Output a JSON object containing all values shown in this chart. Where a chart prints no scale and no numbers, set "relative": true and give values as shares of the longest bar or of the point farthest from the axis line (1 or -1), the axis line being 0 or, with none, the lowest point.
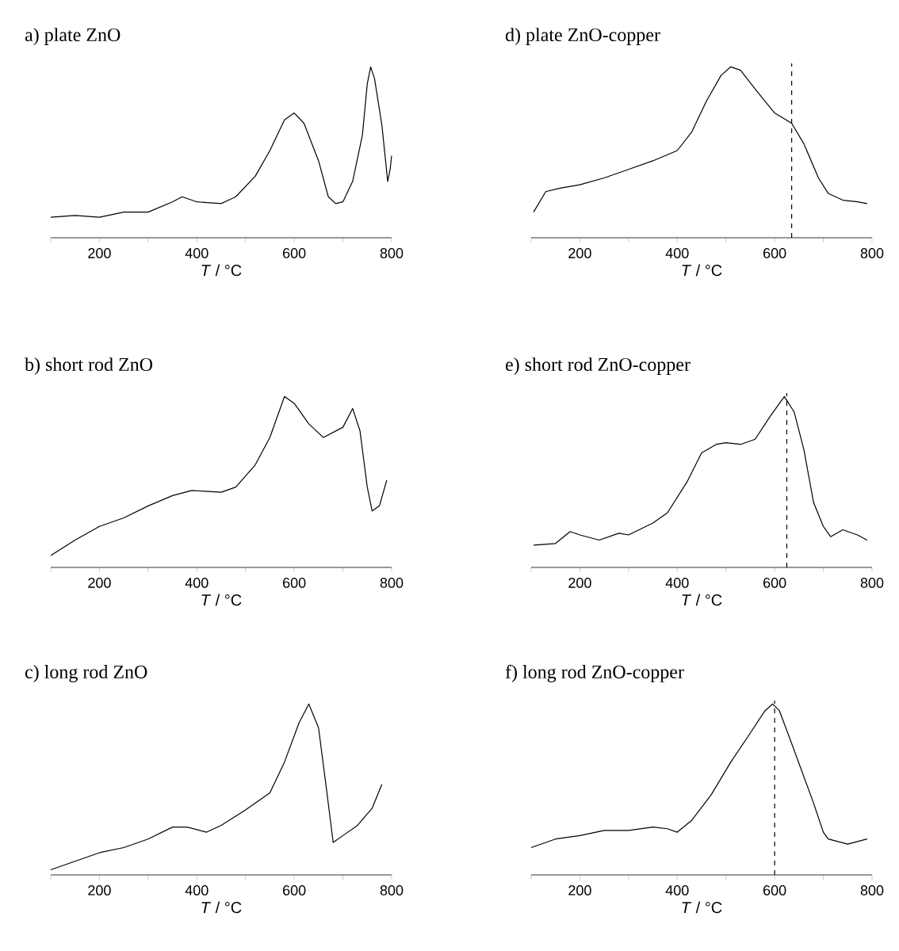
{
  "chart_data": [
    {
      "type": "line",
      "title": "a) plate ZnO",
      "xlabel": "*T* / °C",
      "relative": true,
      "tick_labels": "x",
      "color": "#000000",
      "xlim": [
        100,
        800
      ],
      "xticks": [
        {
          "value": 100,
          "label": null
        },
        200,
        {
          "value": 300,
          "label": null
        },
        400,
        {
          "value": 500,
          "label": null
        },
        600,
        {
          "value": 700,
          "label": null
        },
        800
      ],
      "x": [
        100,
        150,
        200,
        250,
        300,
        350,
        370,
        400,
        450,
        480,
        520,
        550,
        580,
        600,
        620,
        650,
        670,
        685,
        700,
        720,
        740,
        750,
        757,
        765,
        780,
        792,
        797,
        800
      ],
      "values": [
        0.12,
        0.13,
        0.12,
        0.15,
        0.15,
        0.21,
        0.24,
        0.21,
        0.2,
        0.24,
        0.36,
        0.51,
        0.69,
        0.73,
        0.67,
        0.45,
        0.24,
        0.2,
        0.21,
        0.33,
        0.6,
        0.9,
        1.0,
        0.93,
        0.66,
        0.33,
        0.4,
        0.48
      ]
    },
    {
      "type": "line",
      "title": "b) short rod ZnO",
      "xlabel": "*T* / °C",
      "relative": true,
      "tick_labels": "x",
      "color": "#000000",
      "xlim": [
        100,
        800
      ],
      "xticks": [
        {
          "value": 100,
          "label": null
        },
        200,
        {
          "value": 300,
          "label": null
        },
        400,
        {
          "value": 500,
          "label": null
        },
        600,
        {
          "value": 700,
          "label": null
        },
        800
      ],
      "x": [
        100,
        150,
        200,
        250,
        300,
        350,
        390,
        450,
        480,
        520,
        550,
        580,
        600,
        630,
        660,
        700,
        720,
        735,
        750,
        760,
        775,
        790
      ],
      "values": [
        0.07,
        0.16,
        0.24,
        0.29,
        0.36,
        0.42,
        0.45,
        0.44,
        0.47,
        0.6,
        0.76,
        1.0,
        0.96,
        0.84,
        0.76,
        0.82,
        0.93,
        0.8,
        0.47,
        0.33,
        0.36,
        0.51
      ]
    },
    {
      "type": "line",
      "title": "c) long rod ZnO",
      "xlabel": "*T* / °C",
      "relative": true,
      "tick_labels": "x",
      "color": "#000000",
      "xlim": [
        100,
        800
      ],
      "xticks": [
        {
          "value": 100,
          "label": null
        },
        200,
        {
          "value": 300,
          "label": null
        },
        400,
        {
          "value": 500,
          "label": null
        },
        600,
        {
          "value": 700,
          "label": null
        },
        800
      ],
      "x": [
        100,
        150,
        200,
        250,
        300,
        350,
        380,
        420,
        450,
        500,
        550,
        580,
        610,
        630,
        650,
        665,
        680,
        700,
        730,
        760,
        780
      ],
      "values": [
        0.03,
        0.08,
        0.13,
        0.16,
        0.21,
        0.28,
        0.28,
        0.25,
        0.29,
        0.38,
        0.48,
        0.66,
        0.89,
        1.0,
        0.86,
        0.53,
        0.19,
        0.23,
        0.29,
        0.39,
        0.53
      ]
    },
    {
      "type": "line",
      "title": "d) plate ZnO-copper",
      "xlabel": "*T* / °C",
      "relative": true,
      "tick_labels": "x",
      "color": "#000000",
      "xlim": [
        100,
        800
      ],
      "xticks": [
        {
          "value": 100,
          "label": null
        },
        200,
        {
          "value": 300,
          "label": null
        },
        400,
        {
          "value": 500,
          "label": null
        },
        600,
        {
          "value": 700,
          "label": null
        },
        800
      ],
      "ref_lines": [
        {
          "axis": "x",
          "value": 635,
          "line_style": "dashed"
        }
      ],
      "x": [
        105,
        130,
        160,
        200,
        250,
        300,
        350,
        400,
        430,
        460,
        490,
        510,
        530,
        560,
        600,
        635,
        660,
        690,
        710,
        740,
        770,
        790
      ],
      "values": [
        0.15,
        0.27,
        0.29,
        0.31,
        0.35,
        0.4,
        0.45,
        0.51,
        0.62,
        0.8,
        0.95,
        1.0,
        0.98,
        0.87,
        0.73,
        0.67,
        0.55,
        0.35,
        0.26,
        0.22,
        0.21,
        0.2
      ]
    },
    {
      "type": "line",
      "title": "e) short rod ZnO-copper",
      "xlabel": "*T* / °C",
      "relative": true,
      "tick_labels": "x",
      "color": "#000000",
      "xlim": [
        100,
        800
      ],
      "xticks": [
        {
          "value": 100,
          "label": null
        },
        200,
        {
          "value": 300,
          "label": null
        },
        400,
        {
          "value": 500,
          "label": null
        },
        600,
        {
          "value": 700,
          "label": null
        },
        800
      ],
      "ref_lines": [
        {
          "axis": "x",
          "value": 625,
          "line_style": "dashed"
        }
      ],
      "x": [
        105,
        150,
        180,
        200,
        240,
        280,
        300,
        350,
        380,
        420,
        450,
        480,
        500,
        530,
        560,
        590,
        620,
        640,
        660,
        680,
        700,
        715,
        740,
        770,
        790
      ],
      "values": [
        0.13,
        0.14,
        0.21,
        0.19,
        0.16,
        0.2,
        0.19,
        0.26,
        0.32,
        0.5,
        0.67,
        0.72,
        0.73,
        0.72,
        0.75,
        0.88,
        1.0,
        0.91,
        0.69,
        0.38,
        0.24,
        0.18,
        0.22,
        0.19,
        0.16
      ]
    },
    {
      "type": "line",
      "title": "f) long rod ZnO-copper",
      "xlabel": "*T* / °C",
      "relative": true,
      "tick_labels": "x",
      "color": "#000000",
      "xlim": [
        100,
        800
      ],
      "xticks": [
        {
          "value": 100,
          "label": null
        },
        200,
        {
          "value": 300,
          "label": null
        },
        400,
        {
          "value": 500,
          "label": null
        },
        600,
        {
          "value": 700,
          "label": null
        },
        800
      ],
      "ref_lines": [
        {
          "axis": "x",
          "value": 600,
          "line_style": "dashed"
        }
      ],
      "x": [
        100,
        150,
        200,
        250,
        300,
        350,
        380,
        400,
        430,
        470,
        510,
        550,
        580,
        596,
        610,
        640,
        680,
        700,
        710,
        750,
        790
      ],
      "values": [
        0.16,
        0.21,
        0.23,
        0.26,
        0.26,
        0.28,
        0.27,
        0.25,
        0.32,
        0.47,
        0.66,
        0.83,
        0.96,
        1.0,
        0.96,
        0.73,
        0.42,
        0.25,
        0.21,
        0.18,
        0.21
      ]
    }
  ]
}
